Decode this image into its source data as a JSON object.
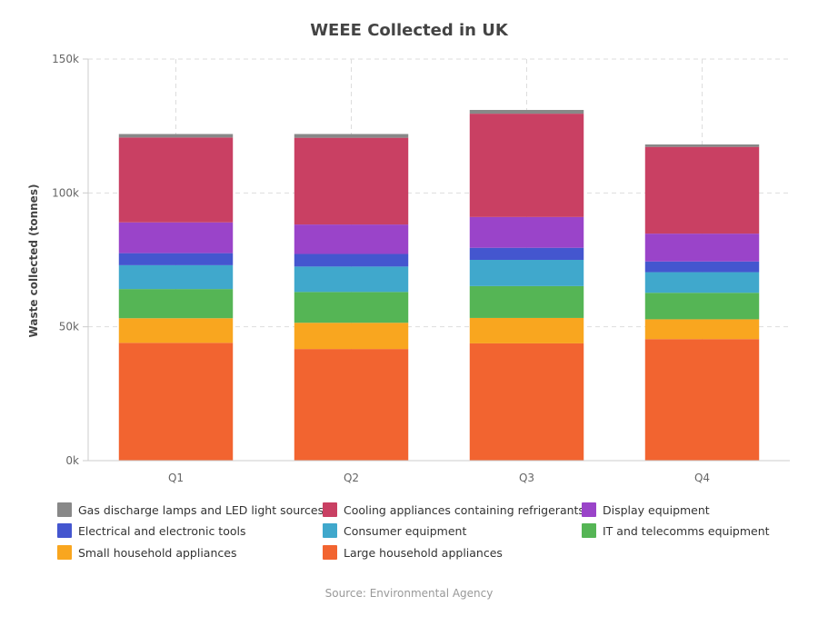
{
  "source": "Source: Environmental Agency",
  "colors": {
    "Gas discharge lamps and LED light sources": "#888888",
    "Cooling appliances containing refrigerants": "#c94063",
    "Display equipment": "#9a44c9",
    "Electrical and electronic tools": "#4456cf",
    "Consumer equipment": "#40a8cc",
    "IT and telecomms equipment": "#55b555",
    "Small household appliances": "#f9a61f",
    "Large household appliances": "#f26430"
  },
  "chart_data": {
    "type": "bar",
    "stacked": true,
    "title": "WEEE Collected in UK",
    "xlabel": "",
    "ylabel": "Waste collected (tonnes)",
    "ylim": [
      0,
      150000
    ],
    "yticks": [
      "0k",
      "50k",
      "100k",
      "150k"
    ],
    "grid": true,
    "legend_position": "bottom",
    "categories": [
      "Q1",
      "Q2",
      "Q3",
      "Q4"
    ],
    "series": [
      {
        "name": "Large household appliances",
        "values": [
          44000,
          41700,
          43800,
          45400
        ]
      },
      {
        "name": "Small household appliances",
        "values": [
          9200,
          9800,
          9500,
          7400
        ]
      },
      {
        "name": "IT and telecomms equipment",
        "values": [
          10900,
          11500,
          11900,
          9900
        ]
      },
      {
        "name": "Consumer equipment",
        "values": [
          8900,
          9500,
          9800,
          7700
        ]
      },
      {
        "name": "Electrical and electronic tools",
        "values": [
          4500,
          4700,
          4500,
          4000
        ]
      },
      {
        "name": "Display equipment",
        "values": [
          11500,
          11000,
          11500,
          10400
        ]
      },
      {
        "name": "Cooling appliances containing refrigerants",
        "values": [
          31700,
          32400,
          38600,
          32400
        ]
      },
      {
        "name": "Gas discharge lamps and LED light sources",
        "values": [
          1300,
          1400,
          1400,
          900
        ]
      }
    ],
    "legend_order": [
      "Gas discharge lamps and LED light sources",
      "Cooling appliances containing refrigerants",
      "Display equipment",
      "Electrical and electronic tools",
      "Consumer equipment",
      "IT and telecomms equipment",
      "Small household appliances",
      "Large household appliances"
    ]
  }
}
